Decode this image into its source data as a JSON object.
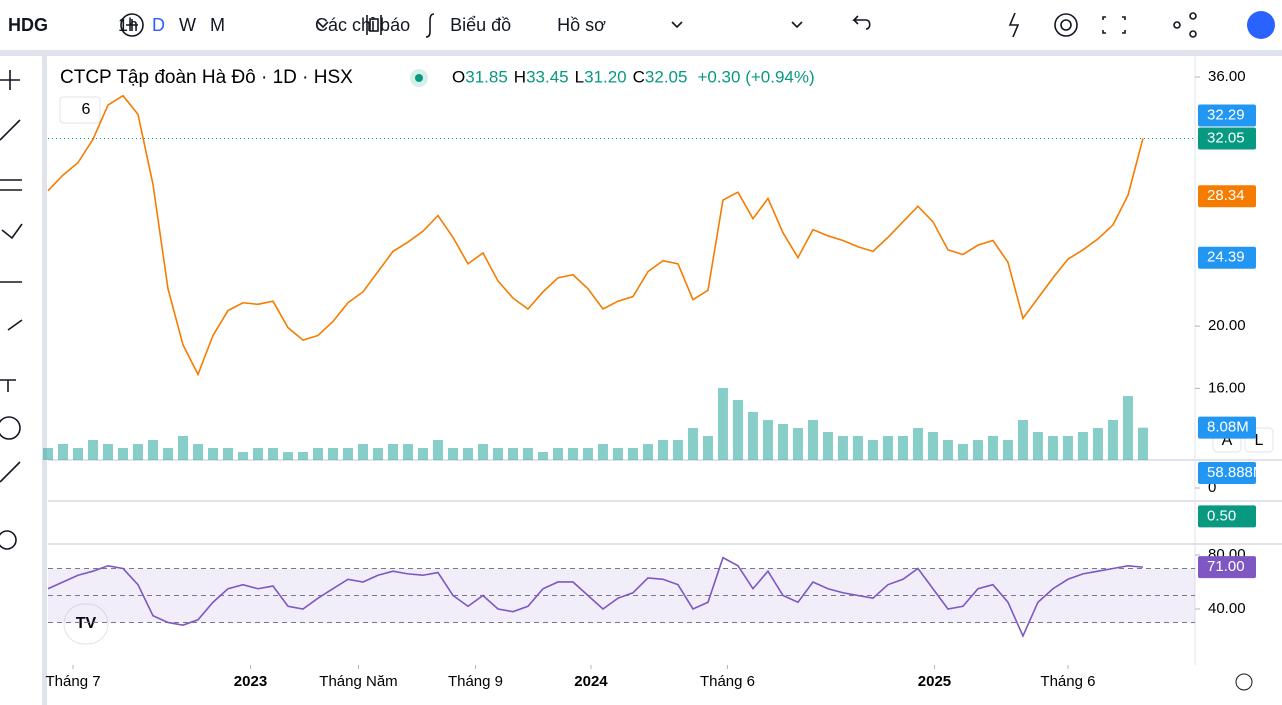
{
  "toolbar": {
    "symbol": "HDG",
    "intervals": [
      "1h",
      "D",
      "W",
      "M"
    ],
    "indicators": "Các chỉ báo",
    "chart_type": "Biểu đồ",
    "profile": "Hồ sơ"
  },
  "legend": {
    "title": "CTCP Tập đoàn Hà Đô · 1D · HSX",
    "ohlc": [
      {
        "label": "O",
        "value": "31.85"
      },
      {
        "label": "H",
        "value": "33.45"
      },
      {
        "label": "L",
        "value": "31.20"
      },
      {
        "label": "C",
        "value": "32.05"
      }
    ],
    "change": "+0.30 (+0.94%)",
    "indicators_count": "6"
  },
  "scale_buttons": [
    "A",
    "L"
  ],
  "chart_data": [
    {
      "type": "line",
      "color": "#f57c00",
      "xlim": [
        0,
        76.47
      ],
      "ylim": [
        11.4,
        37.35
      ],
      "xticks": [
        {
          "value": 1.67,
          "label": "Tháng 7"
        },
        {
          "value": 13.5,
          "label": "2023",
          "bold": true
        },
        {
          "value": 20.7,
          "label": "Tháng Năm"
        },
        {
          "value": 28.5,
          "label": "Tháng 9"
        },
        {
          "value": 36.2,
          "label": "2024",
          "bold": true
        },
        {
          "value": 45.3,
          "label": "Tháng 6"
        },
        {
          "value": 59.1,
          "label": "2025",
          "bold": true
        },
        {
          "value": 68,
          "label": "Tháng 6"
        }
      ],
      "yticks": [
        {
          "value": 36,
          "label": "36.00"
        },
        {
          "value": 20,
          "label": "20.00"
        },
        {
          "value": 16,
          "label": "16.00"
        }
      ],
      "values": [
        28.7,
        29.7,
        30.5,
        32.0,
        34.2,
        34.8,
        33.6,
        29.1,
        22.4,
        18.8,
        16.9,
        19.4,
        21.0,
        21.5,
        21.4,
        21.6,
        19.9,
        19.1,
        19.4,
        20.3,
        21.5,
        22.2,
        23.5,
        24.8,
        25.4,
        26.1,
        27.1,
        25.7,
        24.0,
        24.7,
        22.9,
        21.8,
        21.1,
        22.2,
        23.1,
        23.3,
        22.4,
        21.1,
        21.6,
        21.9,
        23.5,
        24.2,
        24.0,
        21.7,
        22.3,
        28.1,
        28.6,
        26.9,
        28.2,
        26.0,
        24.4,
        26.2,
        25.8,
        25.5,
        25.1,
        24.8,
        25.7,
        26.7,
        27.7,
        26.7,
        24.9,
        24.6,
        25.2,
        25.5,
        24.1,
        20.5,
        21.8,
        23.1,
        24.3,
        24.9,
        25.6,
        26.5,
        28.4,
        32.05
      ],
      "markers": [
        {
          "value": 32.05,
          "label": "32.05",
          "color": "#089981",
          "dotted": true
        },
        {
          "value": 32.29,
          "label": "32.29",
          "color": "#2196f3"
        },
        {
          "value": 28.34,
          "label": "28.34",
          "color": "#f57c00"
        },
        {
          "value": 24.39,
          "label": "24.39",
          "color": "#2196f3"
        }
      ]
    },
    {
      "type": "bar",
      "color": "#26a69a",
      "xlim": [
        0,
        76.47
      ],
      "ylim": [
        0,
        25
      ],
      "values": [
        3,
        4,
        3,
        5,
        4,
        3,
        4,
        5,
        3,
        6,
        4,
        3,
        3,
        2,
        3,
        3,
        2,
        2,
        3,
        3,
        3,
        4,
        3,
        4,
        4,
        3,
        5,
        3,
        3,
        4,
        3,
        3,
        3,
        2,
        3,
        3,
        3,
        4,
        3,
        3,
        4,
        5,
        5,
        8,
        6,
        18,
        15,
        12,
        10,
        9,
        8,
        10,
        7,
        6,
        6,
        5,
        6,
        6,
        8,
        7,
        5,
        4,
        5,
        6,
        5,
        10,
        7,
        6,
        6,
        7,
        8,
        10,
        16,
        8.08
      ],
      "markers": [
        {
          "value": 8.08,
          "label": "8.08M",
          "color": "#2196f3"
        }
      ]
    },
    {
      "type": "line",
      "color": "#2196f3",
      "ylim": [
        -47.1,
        102.1
      ],
      "yticks": [
        {
          "value": 0,
          "label": "0"
        }
      ],
      "markers": [
        {
          "value": 58.888,
          "label": "58.888M",
          "color": "#2196f3"
        }
      ]
    },
    {
      "type": "line",
      "color": "#089981",
      "ylim": [
        -1.5,
        1.5
      ],
      "markers": [
        {
          "value": 0.5,
          "label": "0.50",
          "color": "#089981"
        }
      ]
    },
    {
      "type": "line",
      "color": "#7e57c2",
      "xlim": [
        0,
        76.47
      ],
      "ylim": [
        5.9,
        87.4
      ],
      "yticks": [
        {
          "value": 80,
          "label": "80.00"
        },
        {
          "value": 40,
          "label": "40.00"
        }
      ],
      "guides": [
        70,
        50,
        30
      ],
      "values": [
        55,
        60,
        65,
        68,
        72,
        70,
        58,
        35,
        30,
        28,
        32,
        45,
        55,
        58,
        55,
        57,
        42,
        40,
        48,
        55,
        62,
        60,
        65,
        68,
        66,
        65,
        67,
        50,
        42,
        50,
        40,
        38,
        42,
        55,
        60,
        60,
        50,
        40,
        48,
        52,
        63,
        62,
        58,
        40,
        45,
        78,
        72,
        55,
        68,
        50,
        45,
        60,
        55,
        52,
        50,
        48,
        58,
        62,
        70,
        55,
        40,
        42,
        55,
        58,
        45,
        20,
        45,
        55,
        62,
        66,
        68,
        70,
        72,
        71
      ],
      "markers": [
        {
          "value": 71,
          "label": "71.00",
          "color": "#7e57c2"
        }
      ]
    }
  ]
}
